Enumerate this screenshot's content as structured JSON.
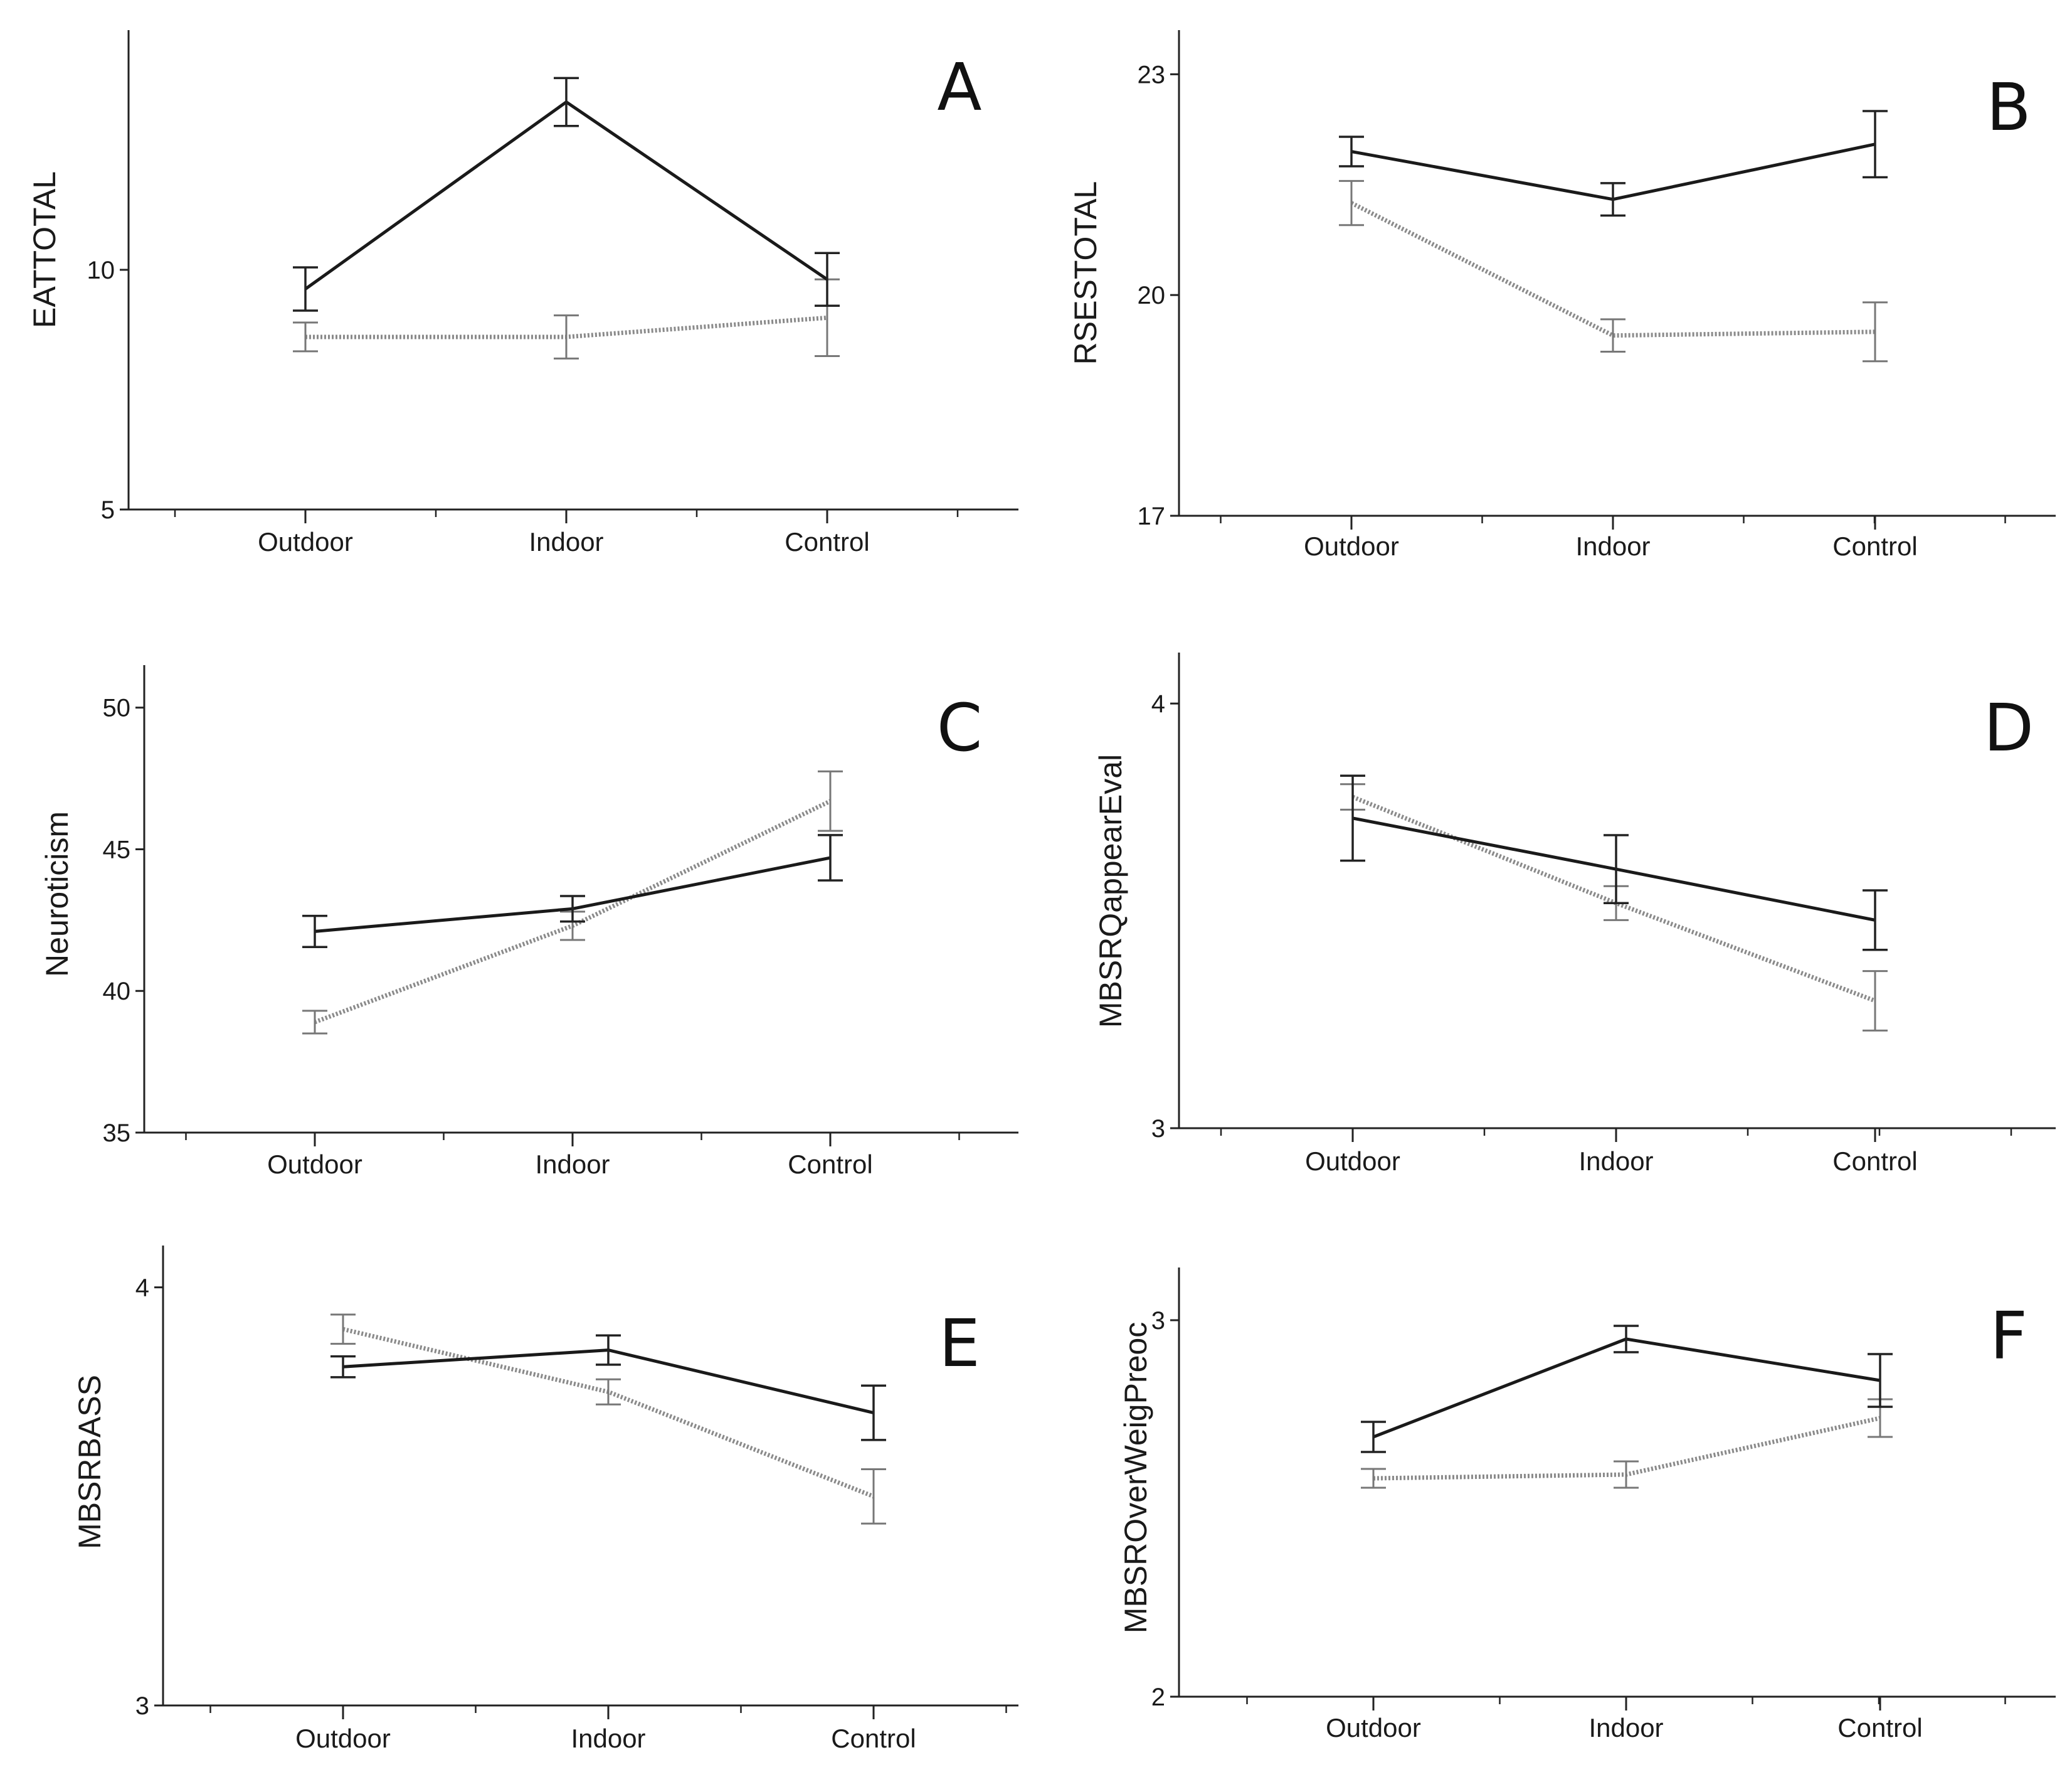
{
  "chart_data": [
    {
      "panel": "A",
      "type": "line",
      "ylabel": "EATTOTAL",
      "categories": [
        "Outdoor",
        "Indoor",
        "Control"
      ],
      "ylim": [
        5,
        15
      ],
      "yticks": [
        5,
        10
      ],
      "series": [
        {
          "name": "solid",
          "style": "solid",
          "values": [
            9.6,
            13.5,
            9.8
          ],
          "error": [
            0.45,
            0.5,
            0.55
          ]
        },
        {
          "name": "dotted",
          "style": "dotted",
          "values": [
            8.6,
            8.6,
            9.0
          ],
          "error": [
            0.3,
            0.45,
            0.8
          ]
        }
      ]
    },
    {
      "panel": "B",
      "type": "line",
      "ylabel": "RSESTOTAL",
      "categories": [
        "Outdoor",
        "Indoor",
        "Control"
      ],
      "ylim": [
        17,
        23.6
      ],
      "yticks": [
        17,
        20,
        23
      ],
      "series": [
        {
          "name": "solid",
          "style": "solid",
          "values": [
            21.95,
            21.3,
            22.05
          ],
          "error": [
            0.2,
            0.22,
            0.45
          ]
        },
        {
          "name": "dotted",
          "style": "dotted",
          "values": [
            21.25,
            19.45,
            19.5
          ],
          "error": [
            0.3,
            0.22,
            0.4
          ]
        }
      ]
    },
    {
      "panel": "C",
      "type": "line",
      "ylabel": "Neuroticism",
      "categories": [
        "Outdoor",
        "Indoor",
        "Control"
      ],
      "ylim": [
        35,
        51.5
      ],
      "yticks": [
        35,
        40,
        45,
        50
      ],
      "series": [
        {
          "name": "solid",
          "style": "solid",
          "values": [
            42.1,
            42.9,
            44.7
          ],
          "error": [
            0.55,
            0.45,
            0.8
          ]
        },
        {
          "name": "dotted",
          "style": "dotted",
          "values": [
            38.9,
            42.3,
            46.7
          ],
          "error": [
            0.4,
            0.5,
            1.05
          ]
        }
      ]
    },
    {
      "panel": "D",
      "type": "line",
      "ylabel": "MBSRQappearEval",
      "categories": [
        "Outdoor",
        "Indoor",
        "Control"
      ],
      "ylim": [
        3,
        4.12
      ],
      "yticks": [
        3,
        4
      ],
      "series": [
        {
          "name": "solid",
          "style": "solid",
          "values": [
            3.73,
            3.61,
            3.49
          ],
          "error": [
            0.1,
            0.08,
            0.07
          ]
        },
        {
          "name": "dotted",
          "style": "dotted",
          "values": [
            3.78,
            3.53,
            3.3
          ],
          "error": [
            0.03,
            0.04,
            0.07
          ]
        }
      ]
    },
    {
      "panel": "E",
      "type": "line",
      "ylabel": "MBSRBASS",
      "categories": [
        "Outdoor",
        "Indoor",
        "Control"
      ],
      "ylim": [
        3,
        4.1
      ],
      "yticks": [
        3,
        4
      ],
      "series": [
        {
          "name": "solid",
          "style": "solid",
          "values": [
            3.81,
            3.85,
            3.7
          ],
          "error": [
            0.025,
            0.035,
            0.065
          ]
        },
        {
          "name": "dotted",
          "style": "dotted",
          "values": [
            3.9,
            3.75,
            3.5
          ],
          "error": [
            0.035,
            0.03,
            0.065
          ]
        }
      ]
    },
    {
      "panel": "F",
      "type": "line",
      "ylabel": "MBSROverWeigPreoc",
      "categories": [
        "Outdoor",
        "Indoor",
        "Control"
      ],
      "ylim": [
        2,
        3.14
      ],
      "yticks": [
        2,
        3
      ],
      "series": [
        {
          "name": "solid",
          "style": "solid",
          "values": [
            2.69,
            2.95,
            2.84
          ],
          "error": [
            0.04,
            0.035,
            0.07
          ]
        },
        {
          "name": "dotted",
          "style": "dotted",
          "values": [
            2.58,
            2.59,
            2.74
          ],
          "error": [
            0.025,
            0.035,
            0.05
          ]
        }
      ]
    }
  ]
}
